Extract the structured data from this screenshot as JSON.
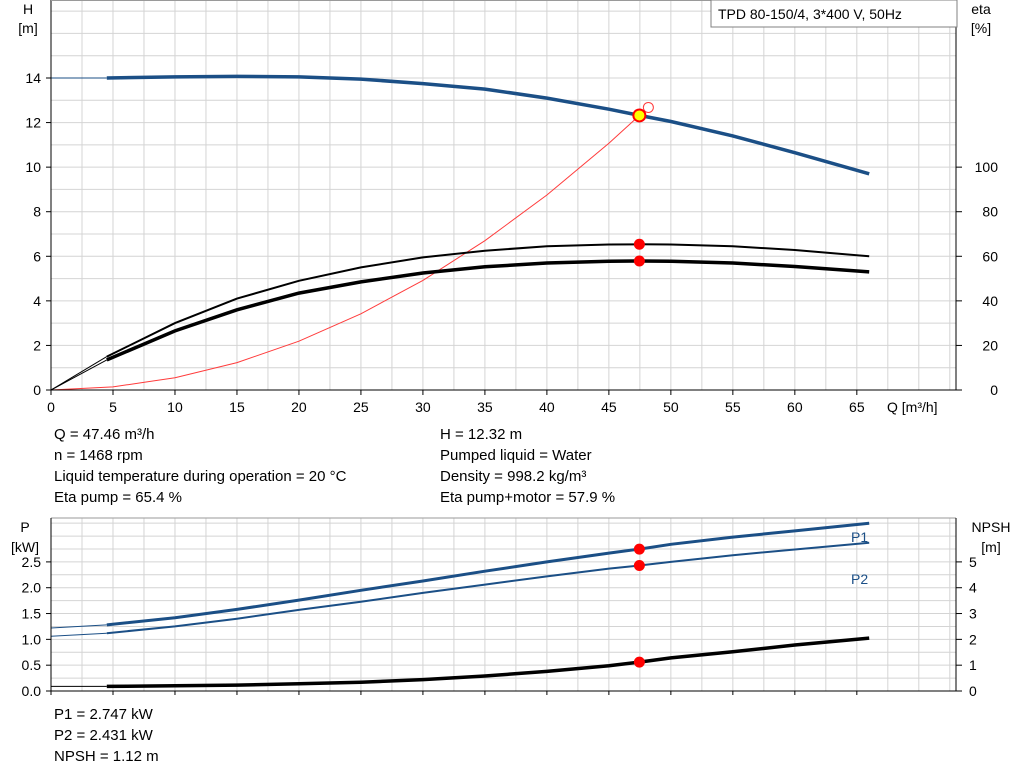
{
  "title": "TPD 80-150/4, 3*400 V, 50Hz",
  "top_panel": {
    "y_left_label": [
      "H",
      "[m]"
    ],
    "y_right_label": [
      "eta",
      "[%]"
    ],
    "x_label": "Q [m³/h]",
    "x_ticks": [
      0,
      5,
      10,
      15,
      20,
      25,
      30,
      35,
      40,
      45,
      50,
      55,
      60,
      65
    ],
    "y_left_ticks": [
      0,
      2,
      4,
      6,
      8,
      10,
      12,
      14
    ],
    "y_right_ticks": [
      0,
      20,
      40,
      60,
      80,
      100
    ]
  },
  "info_block_1": {
    "left": [
      "Q = 47.46 m³/h",
      "n = 1468 rpm",
      "Liquid temperature during operation = 20 °C",
      "Eta pump = 65.4 %"
    ],
    "right": [
      "H = 12.32 m",
      "Pumped liquid = Water",
      "Density = 998.2 kg/m³",
      "Eta pump+motor = 57.9 %"
    ]
  },
  "bottom_panel": {
    "y_left_label": [
      "P",
      "[kW]"
    ],
    "y_right_label": [
      "NPSH",
      "[m]"
    ],
    "y_left_ticks": [
      "0.0",
      "0.5",
      "1.0",
      "1.5",
      "2.0",
      "2.5"
    ],
    "y_right_ticks": [
      "0",
      "1",
      "2",
      "3",
      "4",
      "5"
    ],
    "series_labels": [
      "P1",
      "P2"
    ]
  },
  "info_block_2": [
    "P1 = 2.747 kW",
    "P2 = 2.431 kW",
    "NPSH = 1.12 m"
  ],
  "colors": {
    "head": "#1b4f86",
    "efficiency": "#000000",
    "system_curve": "#ff3b3b",
    "power": "#1b4f86",
    "npsh": "#000000",
    "grid": "#d4d4d4",
    "duty_point": "#ff0000",
    "duty_marker_fill": "#ffff00"
  },
  "chart_data": [
    {
      "type": "line",
      "xlabel": "Q [m³/h]",
      "ylabel": "H [m]",
      "y2label": "eta [%]",
      "xlim": [
        0,
        73
      ],
      "ylim": [
        0,
        17.5
      ],
      "y2lim": [
        0,
        175
      ],
      "grid": true,
      "duty_point": {
        "Q": 47.46,
        "H": 12.32,
        "eta_pump": 65.4,
        "eta_pump_motor": 57.9
      },
      "series": [
        {
          "name": "H",
          "axis": "left",
          "x": [
            0,
            4.5,
            10,
            15,
            20,
            25,
            30,
            35,
            40,
            45,
            47.46,
            50,
            55,
            60,
            66
          ],
          "values": [
            14.0,
            14.0,
            14.05,
            14.07,
            14.05,
            13.95,
            13.75,
            13.5,
            13.1,
            12.6,
            12.32,
            12.05,
            11.4,
            10.65,
            9.7
          ]
        },
        {
          "name": "Eta pump",
          "axis": "right",
          "x": [
            0,
            4.5,
            10,
            15,
            20,
            25,
            30,
            35,
            40,
            45,
            47.46,
            50,
            55,
            60,
            66
          ],
          "values": [
            0,
            15,
            30,
            41,
            49,
            55,
            59.5,
            62.5,
            64.5,
            65.3,
            65.4,
            65.3,
            64.5,
            62.8,
            60
          ]
        },
        {
          "name": "Eta pump+motor",
          "axis": "right",
          "x": [
            0,
            4.5,
            10,
            15,
            20,
            25,
            30,
            35,
            40,
            45,
            47.46,
            50,
            55,
            60,
            66
          ],
          "values": [
            0,
            13.5,
            26.5,
            36,
            43.5,
            48.5,
            52.5,
            55.3,
            57,
            57.8,
            57.9,
            57.8,
            57,
            55.4,
            53
          ]
        },
        {
          "name": "System curve",
          "axis": "left",
          "x": [
            0,
            5,
            10,
            15,
            20,
            25,
            30,
            35,
            40,
            45,
            47.46
          ],
          "values": [
            0,
            0.14,
            0.55,
            1.23,
            2.19,
            3.42,
            4.92,
            6.7,
            8.75,
            11.07,
            12.32
          ]
        }
      ]
    },
    {
      "type": "line",
      "ylabel": "P [kW]",
      "y2label": "NPSH [m]",
      "xlim": [
        0,
        73
      ],
      "ylim": [
        0,
        3.35
      ],
      "y2lim": [
        0,
        6.7
      ],
      "grid": true,
      "duty_point": {
        "Q": 47.46,
        "P1": 2.747,
        "P2": 2.431,
        "NPSH": 1.12
      },
      "series": [
        {
          "name": "P1",
          "axis": "left",
          "x": [
            0,
            4.5,
            10,
            15,
            20,
            25,
            30,
            35,
            40,
            45,
            47.46,
            50,
            55,
            60,
            66
          ],
          "values": [
            1.22,
            1.28,
            1.42,
            1.58,
            1.76,
            1.95,
            2.13,
            2.32,
            2.5,
            2.67,
            2.747,
            2.84,
            2.98,
            3.1,
            3.25
          ]
        },
        {
          "name": "P2",
          "axis": "left",
          "x": [
            0,
            4.5,
            10,
            15,
            20,
            25,
            30,
            35,
            40,
            45,
            47.46,
            50,
            55,
            60,
            66
          ],
          "values": [
            1.06,
            1.12,
            1.25,
            1.4,
            1.57,
            1.73,
            1.9,
            2.06,
            2.22,
            2.37,
            2.431,
            2.5,
            2.63,
            2.74,
            2.87
          ]
        },
        {
          "name": "NPSH",
          "axis": "right",
          "x": [
            0,
            4.5,
            10,
            15,
            20,
            25,
            30,
            35,
            40,
            45,
            47.46,
            50,
            55,
            60,
            66
          ],
          "values": [
            0.18,
            0.18,
            0.2,
            0.23,
            0.28,
            0.34,
            0.44,
            0.58,
            0.76,
            0.98,
            1.12,
            1.28,
            1.52,
            1.78,
            2.05
          ]
        }
      ]
    }
  ]
}
